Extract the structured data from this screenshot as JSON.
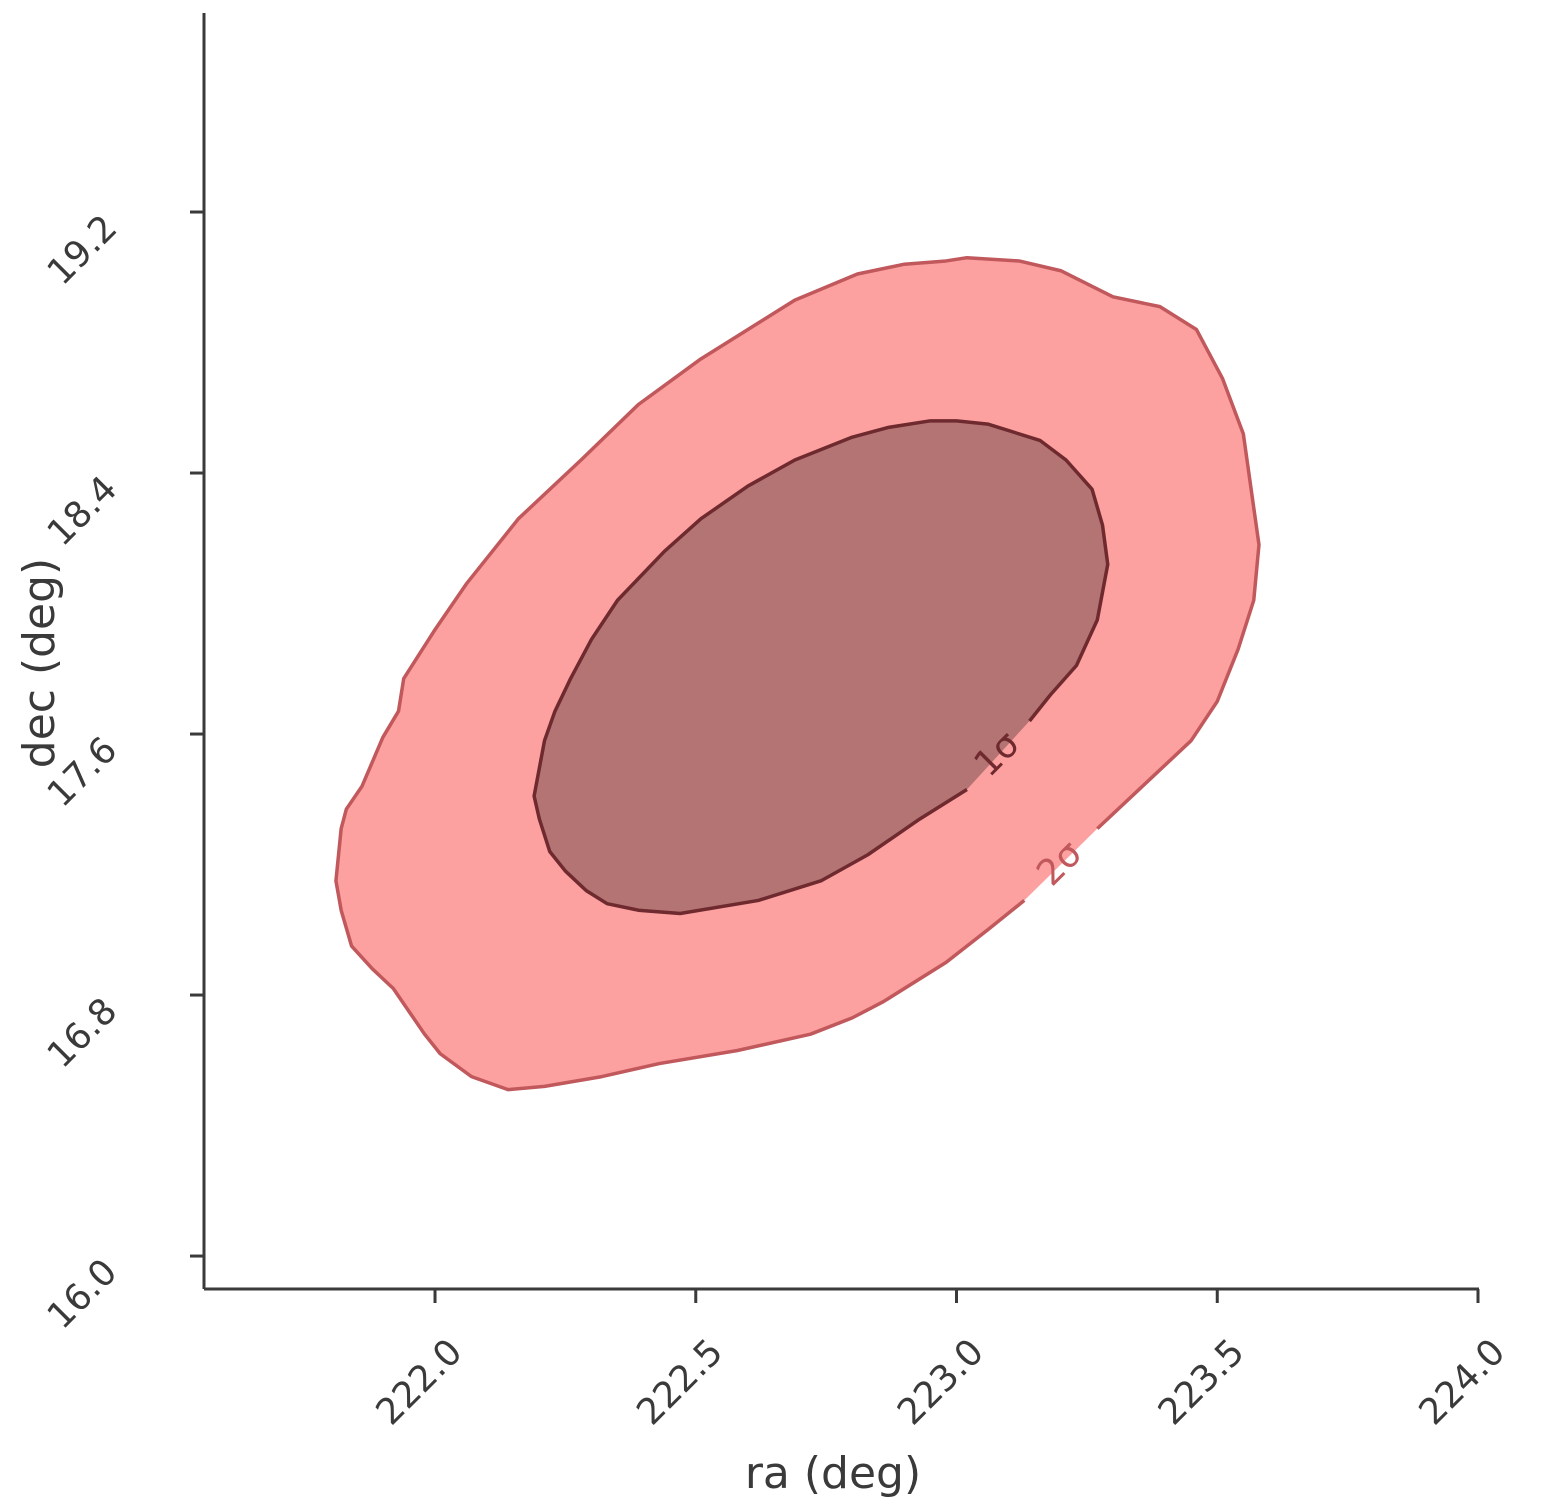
{
  "chart_data": {
    "type": "contour",
    "x_label": "ra (deg)",
    "y_label": "dec (deg)",
    "xlim": [
      221.557,
      224.0
    ],
    "ylim": [
      15.899,
      19.81
    ],
    "xticks": [
      {
        "value": 222.0,
        "label": "222.0"
      },
      {
        "value": 222.5,
        "label": "222.5"
      },
      {
        "value": 223.0,
        "label": "223.0"
      },
      {
        "value": 223.5,
        "label": "223.5"
      },
      {
        "value": 224.0,
        "label": "224.0"
      }
    ],
    "yticks": [
      {
        "value": 16.0,
        "label": "16.0"
      },
      {
        "value": 16.8,
        "label": "16.8"
      },
      {
        "value": 17.6,
        "label": "17.6"
      },
      {
        "value": 18.4,
        "label": "18.4"
      },
      {
        "value": 19.2,
        "label": "19.2"
      }
    ],
    "series": [
      {
        "name": "2σ",
        "color": "#fda0a0",
        "edgecolor": "#c0585c",
        "x": [
          223.02,
          223.12,
          223.2,
          223.3,
          223.39,
          223.46,
          223.51,
          223.55,
          223.58,
          223.57,
          223.54,
          223.5,
          223.45,
          223.37,
          223.27,
          223.13,
          223.06,
          222.98,
          222.86,
          222.8,
          222.72,
          222.58,
          222.43,
          222.32,
          222.21,
          222.14,
          222.07,
          222.01,
          221.98,
          221.95,
          221.92,
          221.88,
          221.84,
          221.82,
          221.81,
          221.82,
          221.83,
          221.86,
          221.9,
          221.93,
          221.94,
          222.0,
          222.06,
          222.16,
          222.28,
          222.39,
          222.51,
          222.69,
          222.81,
          222.9,
          222.98
        ],
        "y": [
          19.06,
          19.05,
          19.02,
          18.94,
          18.91,
          18.84,
          18.69,
          18.52,
          18.18,
          18.01,
          17.86,
          17.7,
          17.58,
          17.46,
          17.31,
          17.09,
          17.0,
          16.9,
          16.78,
          16.73,
          16.68,
          16.63,
          16.59,
          16.55,
          16.52,
          16.51,
          16.55,
          16.62,
          16.68,
          16.75,
          16.82,
          16.88,
          16.95,
          17.06,
          17.15,
          17.31,
          17.37,
          17.44,
          17.59,
          17.67,
          17.77,
          17.92,
          18.06,
          18.26,
          18.44,
          18.61,
          18.75,
          18.93,
          19.01,
          19.04,
          19.05
        ]
      },
      {
        "name": "1σ",
        "color": "#b57474",
        "edgecolor": "#6e2a2e",
        "x": [
          223.0,
          223.06,
          223.16,
          223.21,
          223.26,
          223.28,
          223.29,
          223.27,
          223.23,
          223.18,
          223.14,
          223.02,
          222.93,
          222.83,
          222.74,
          222.62,
          222.47,
          222.39,
          222.33,
          222.29,
          222.25,
          222.22,
          222.2,
          222.19,
          222.21,
          222.23,
          222.26,
          222.3,
          222.35,
          222.44,
          222.51,
          222.6,
          222.69,
          222.8,
          222.87,
          222.95
        ],
        "y": [
          18.56,
          18.55,
          18.5,
          18.44,
          18.35,
          18.24,
          18.12,
          17.95,
          17.81,
          17.72,
          17.64,
          17.43,
          17.34,
          17.23,
          17.15,
          17.09,
          17.05,
          17.06,
          17.08,
          17.12,
          17.18,
          17.24,
          17.34,
          17.41,
          17.58,
          17.67,
          17.77,
          17.89,
          18.01,
          18.16,
          18.26,
          18.36,
          18.44,
          18.51,
          18.54,
          18.56
        ]
      }
    ]
  }
}
